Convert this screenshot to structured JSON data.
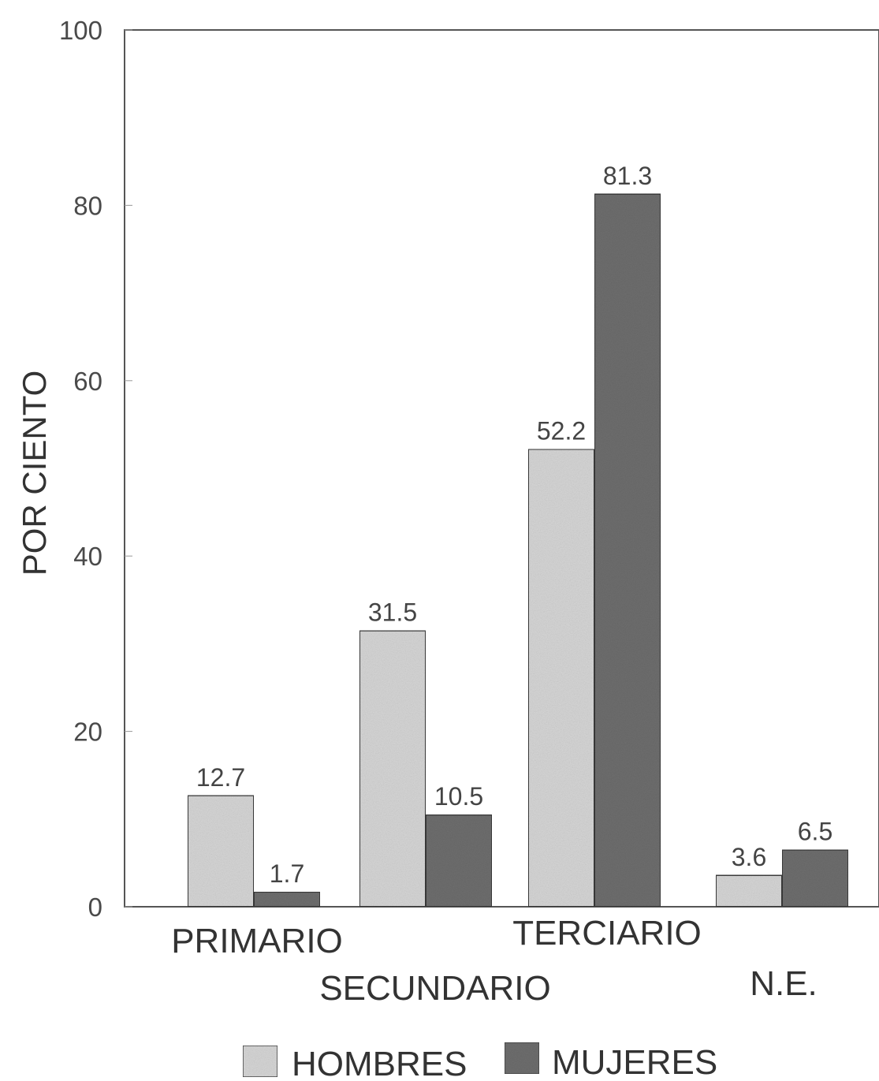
{
  "chart_data": {
    "type": "bar",
    "title": "",
    "xlabel": "",
    "ylabel": "POR CIENTO",
    "ylim": [
      0,
      100
    ],
    "yticks": [
      "0",
      "20",
      "40",
      "60",
      "80",
      "100"
    ],
    "grid": false,
    "legend_position": "bottom",
    "categories": [
      "PRIMARIO",
      "SECUNDARIO",
      "TERCIARIO",
      "N.E."
    ],
    "series": [
      {
        "name": "HOMBRES",
        "values": [
          12.7,
          31.5,
          52.2,
          3.6
        ],
        "labels": [
          "12.7",
          "31.5",
          "52.2",
          "3.6"
        ],
        "color": "#d6d6d6"
      },
      {
        "name": "MUJERES",
        "values": [
          1.7,
          10.5,
          81.3,
          6.5
        ],
        "labels": [
          "1.7",
          "10.5",
          "81.3",
          "6.5"
        ],
        "color": "#6e6e6e"
      }
    ]
  }
}
